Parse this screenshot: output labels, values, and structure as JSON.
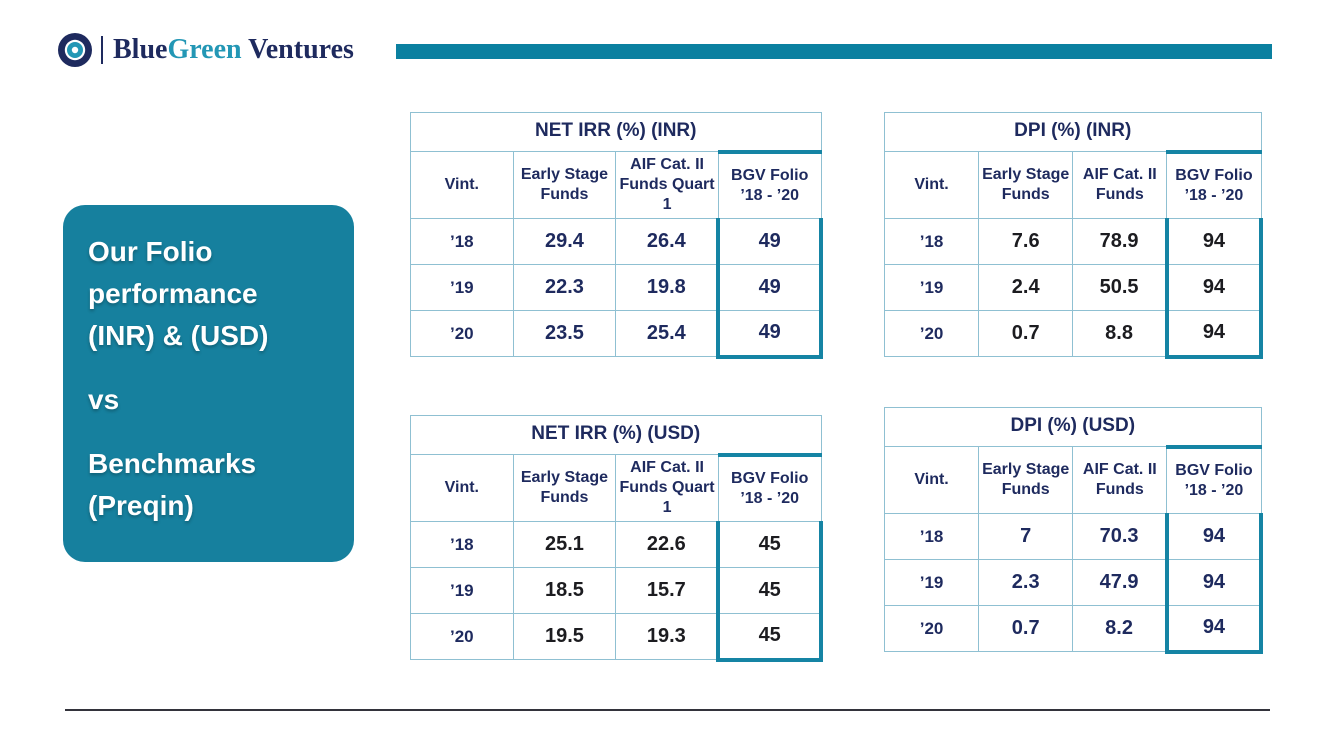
{
  "brand": {
    "logo_blue": "Blue",
    "logo_green": "Green",
    "logo_rest": " Ventures",
    "navy_color": "#1e2a5e",
    "teal_color": "#0b80a0",
    "green_text_color": "#2397b5"
  },
  "card": {
    "background_color": "#16809e",
    "paragraphs": {
      "p1": "Our Folio\nperformance\n(INR) & (USD)",
      "p2": "vs",
      "p3": "Benchmarks\n(Preqin)"
    }
  },
  "tables": [
    {
      "title": "NET IRR (%) (INR)",
      "columns": [
        "Vint.",
        "Early Stage Funds",
        "AIF Cat. II Funds Quart 1",
        "BGV Folio ’18 - ’20"
      ],
      "rows": [
        [
          "’18",
          "29.4",
          "26.4",
          "49"
        ],
        [
          "’19",
          "22.3",
          "19.8",
          "49"
        ],
        [
          "’20",
          "23.5",
          "25.4",
          "49"
        ]
      ],
      "values_color": "#1e2a5e",
      "highlight_border_color": "#1584a4"
    },
    {
      "title": "DPI (%) (INR)",
      "columns": [
        "Vint.",
        "Early Stage Funds",
        "AIF Cat. II Funds",
        "BGV Folio ’18 - ’20"
      ],
      "rows": [
        [
          "’18",
          "7.6",
          "78.9",
          "94"
        ],
        [
          "’19",
          "2.4",
          "50.5",
          "94"
        ],
        [
          "’20",
          "0.7",
          "8.8",
          "94"
        ]
      ],
      "values_color": "#1c1c20",
      "highlight_border_color": "#1584a4"
    },
    {
      "title": "NET IRR (%) (USD)",
      "columns": [
        "Vint.",
        "Early Stage Funds",
        "AIF Cat. II Funds Quart 1",
        "BGV Folio ’18 - ’20"
      ],
      "rows": [
        [
          "’18",
          "25.1",
          "22.6",
          "45"
        ],
        [
          "’19",
          "18.5",
          "15.7",
          "45"
        ],
        [
          "’20",
          "19.5",
          "19.3",
          "45"
        ]
      ],
      "values_color": "#1c1c20",
      "highlight_border_color": "#1584a4"
    },
    {
      "title": "DPI (%) (USD)",
      "columns": [
        "Vint.",
        "Early Stage Funds",
        "AIF Cat. II Funds",
        "BGV Folio ’18 - ’20"
      ],
      "rows": [
        [
          "’18",
          "7",
          "70.3",
          "94"
        ],
        [
          "’19",
          "2.3",
          "47.9",
          "94"
        ],
        [
          "’20",
          "0.7",
          "8.2",
          "94"
        ]
      ],
      "values_color": "#1e2a5e",
      "highlight_border_color": "#1584a4"
    }
  ]
}
